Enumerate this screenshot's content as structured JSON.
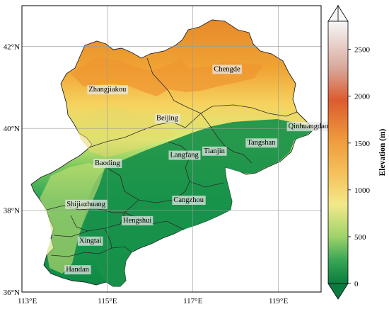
{
  "map": {
    "x_ticks": [
      {
        "lon": 113,
        "label": "113°E"
      },
      {
        "lon": 115,
        "label": "115°E"
      },
      {
        "lon": 117,
        "label": "117°E"
      },
      {
        "lon": 119,
        "label": "119°E"
      }
    ],
    "y_ticks": [
      {
        "lat": 36,
        "label": "36°N"
      },
      {
        "lat": 38,
        "label": "38°N"
      },
      {
        "lat": 40,
        "label": "40°N"
      },
      {
        "lat": 42,
        "label": "42°N"
      }
    ],
    "lon_range": [
      113,
      120
    ],
    "lat_range": [
      36,
      43
    ],
    "gridlines": true,
    "cities": [
      {
        "name": "Chengde",
        "lon": 117.8,
        "lat": 41.4
      },
      {
        "name": "Zhangjiakou",
        "lon": 115.0,
        "lat": 40.9
      },
      {
        "name": "Beijing",
        "lon": 116.4,
        "lat": 40.2
      },
      {
        "name": "Qinhuangdao",
        "lon": 119.7,
        "lat": 40.0
      },
      {
        "name": "Tangshan",
        "lon": 118.6,
        "lat": 39.6
      },
      {
        "name": "Tianjin",
        "lon": 117.5,
        "lat": 39.4
      },
      {
        "name": "Langfang",
        "lon": 116.8,
        "lat": 39.3
      },
      {
        "name": "Baoding",
        "lon": 115.0,
        "lat": 39.1
      },
      {
        "name": "Cangzhou",
        "lon": 116.9,
        "lat": 38.2
      },
      {
        "name": "Shijiazhuang",
        "lon": 114.5,
        "lat": 38.1
      },
      {
        "name": "Hengshui",
        "lon": 115.7,
        "lat": 37.7
      },
      {
        "name": "Xingtai",
        "lon": 114.6,
        "lat": 37.2
      },
      {
        "name": "Handan",
        "lon": 114.3,
        "lat": 36.5
      }
    ]
  },
  "colorbar": {
    "title": "Elevation (m)",
    "min": 0,
    "max": 2800,
    "ticks": [
      {
        "value": 0,
        "label": "0"
      },
      {
        "value": 500,
        "label": "500"
      },
      {
        "value": 1000,
        "label": "1000"
      },
      {
        "value": 1500,
        "label": "1500"
      },
      {
        "value": 2000,
        "label": "2000"
      },
      {
        "value": 2500,
        "label": "2500"
      }
    ],
    "colors": [
      "#1a9850",
      "#66bd63",
      "#a6d96a",
      "#d9ef8b",
      "#fee08b",
      "#fdae61",
      "#f46d43",
      "#e0825a",
      "#f5f5f5"
    ]
  }
}
